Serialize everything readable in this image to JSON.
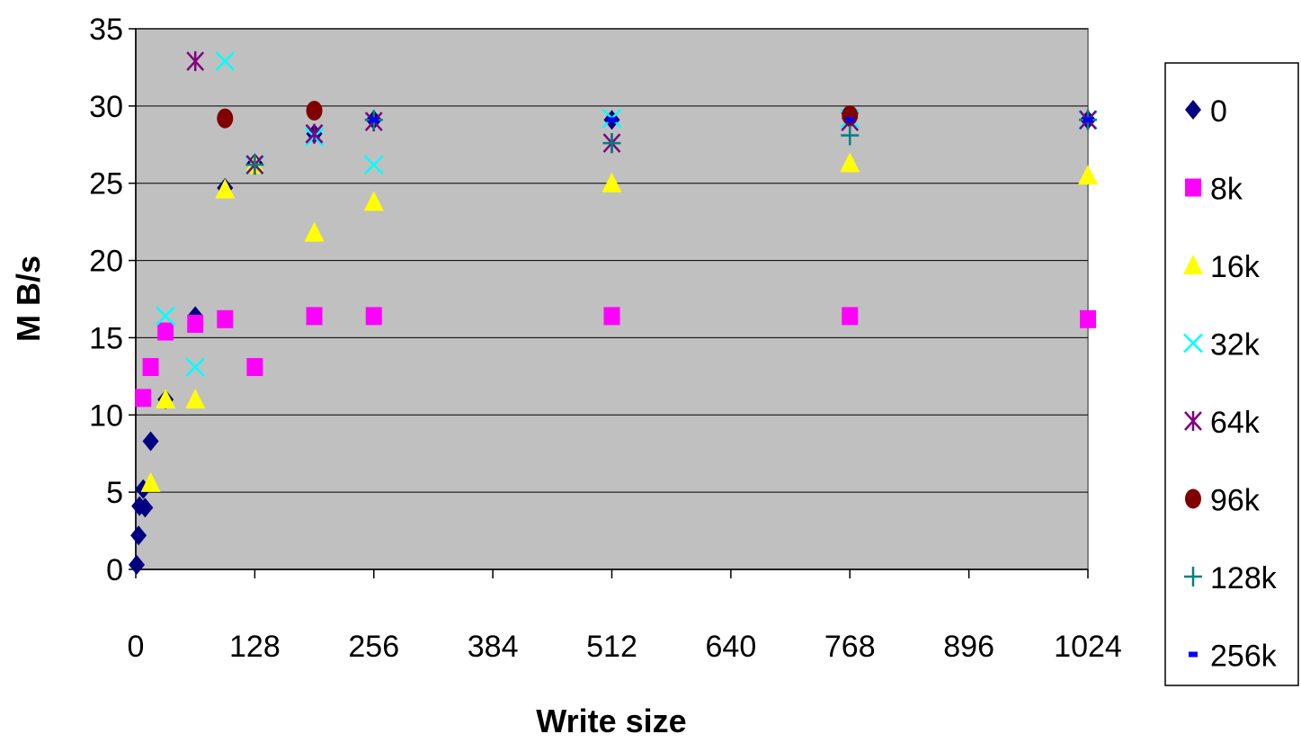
{
  "chart_data": {
    "type": "scatter",
    "title": "",
    "xlabel": "Write size",
    "ylabel": "M B/s",
    "xlim": [
      0,
      1024
    ],
    "ylim": [
      0,
      35
    ],
    "x_ticks": [
      "0",
      "128",
      "256",
      "384",
      "512",
      "640",
      "768",
      "896",
      "1024"
    ],
    "x_tick_values": [
      0,
      128,
      256,
      384,
      512,
      640,
      768,
      896,
      1024
    ],
    "y_ticks": [
      "0",
      "5",
      "10",
      "15",
      "20",
      "25",
      "30",
      "35"
    ],
    "y_tick_values": [
      0,
      5,
      10,
      15,
      20,
      25,
      30,
      35
    ],
    "grid": "horizontal",
    "plot_background": "#c0c0c0",
    "legend_position": "right",
    "series": [
      {
        "name": "0",
        "marker": "diamond",
        "color": "#000080",
        "points": [
          [
            1,
            0.3
          ],
          [
            3,
            2.2
          ],
          [
            4,
            4.1
          ],
          [
            8,
            5.2
          ],
          [
            10,
            4.0
          ],
          [
            16,
            8.3
          ],
          [
            32,
            11.0
          ],
          [
            64,
            16.4
          ],
          [
            96,
            24.7
          ],
          [
            128,
            26.3
          ],
          [
            192,
            28.2
          ],
          [
            256,
            29.1
          ],
          [
            512,
            29.1
          ],
          [
            768,
            29.2
          ],
          [
            1024,
            29.1
          ]
        ]
      },
      {
        "name": "8k",
        "marker": "square",
        "color": "#ff00ff",
        "points": [
          [
            8,
            11.1
          ],
          [
            16,
            13.1
          ],
          [
            32,
            15.4
          ],
          [
            64,
            15.9
          ],
          [
            96,
            16.2
          ],
          [
            128,
            13.1
          ],
          [
            192,
            16.4
          ],
          [
            256,
            16.4
          ],
          [
            512,
            16.4
          ],
          [
            768,
            16.4
          ],
          [
            1024,
            16.2
          ]
        ]
      },
      {
        "name": "16k",
        "marker": "triangle",
        "color": "#ffff00",
        "points": [
          [
            16,
            5.6
          ],
          [
            32,
            11.0
          ],
          [
            64,
            11.0
          ],
          [
            96,
            24.6
          ],
          [
            128,
            26.2
          ],
          [
            192,
            21.8
          ],
          [
            256,
            23.8
          ],
          [
            512,
            25.0
          ],
          [
            768,
            26.3
          ],
          [
            1024,
            25.5
          ]
        ]
      },
      {
        "name": "32k",
        "marker": "x",
        "color": "#00ffff",
        "points": [
          [
            32,
            16.4
          ],
          [
            64,
            13.1
          ],
          [
            96,
            32.9
          ],
          [
            128,
            26.2
          ],
          [
            192,
            28.0
          ],
          [
            256,
            26.2
          ],
          [
            512,
            29.2
          ],
          [
            768,
            29.2
          ],
          [
            1024,
            29.1
          ]
        ]
      },
      {
        "name": "64k",
        "marker": "asterisk",
        "color": "#800080",
        "points": [
          [
            64,
            32.9
          ],
          [
            128,
            26.2
          ],
          [
            192,
            28.2
          ],
          [
            256,
            29.0
          ],
          [
            512,
            27.6
          ],
          [
            768,
            29.0
          ],
          [
            1024,
            29.1
          ]
        ]
      },
      {
        "name": "96k",
        "marker": "circle",
        "color": "#800000",
        "points": [
          [
            96,
            29.2
          ],
          [
            192,
            29.7
          ],
          [
            768,
            29.4
          ]
        ]
      },
      {
        "name": "128k",
        "marker": "plus",
        "color": "#008080",
        "points": [
          [
            128,
            26.2
          ],
          [
            256,
            29.1
          ],
          [
            512,
            27.6
          ],
          [
            768,
            28.1
          ],
          [
            1024,
            29.1
          ]
        ]
      },
      {
        "name": "256k",
        "marker": "dash",
        "color": "#0000ff",
        "points": [
          [
            256,
            29.1
          ],
          [
            512,
            29.1
          ],
          [
            768,
            29.1
          ],
          [
            1024,
            29.1
          ]
        ]
      }
    ]
  }
}
